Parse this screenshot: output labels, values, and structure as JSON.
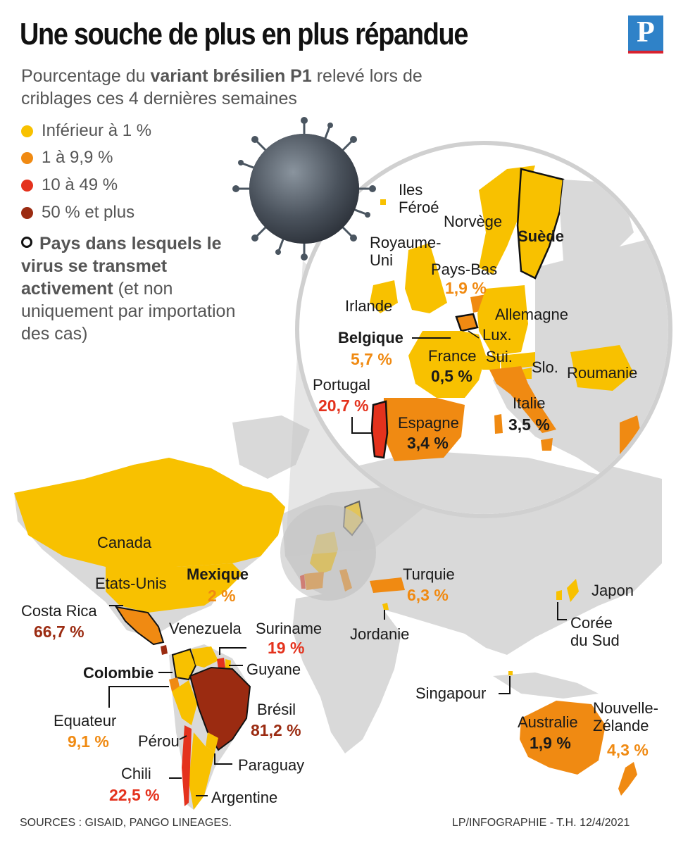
{
  "title": "Une souche de plus en plus répandue",
  "logo": "P",
  "subtitle": {
    "prefix": "Pourcentage du ",
    "bold": "variant brésilien P1",
    "suffix": " relevé lors de criblages ces 4 dernières semaines"
  },
  "legend": {
    "items": [
      {
        "label": "Inférieur à 1 %",
        "color": "#f8c100"
      },
      {
        "label": "1 à 9,9 %",
        "color": "#f08a12"
      },
      {
        "label": "10 à 49 %",
        "color": "#e4321d"
      },
      {
        "label": "50 % et plus",
        "color": "#9b2b11"
      }
    ],
    "active_bold": "Pays dans lesquels le virus se transmet activement",
    "active_rest": " (et non uniquement par importation des cas)"
  },
  "colors": {
    "land": "#d9d9d9",
    "sea": "#ffffff",
    "low": "#f8c100",
    "mid": "#f08a12",
    "high": "#e4321d",
    "very_high": "#9b2b11"
  },
  "europe_zoom": {
    "labels": {
      "iles_feroe": "Iles Féroé",
      "norvege": "Norvège",
      "suede": "Suède",
      "royaume_uni": "Royaume-Uni",
      "pays_bas": "Pays-Bas",
      "pays_bas_pct": "1,9 %",
      "irlande": "Irlande",
      "allemagne": "Allemagne",
      "belgique": "Belgique",
      "belgique_pct": "5,7 %",
      "lux": "Lux.",
      "sui": "Sui.",
      "france": "France",
      "france_pct": "0,5 %",
      "slo": "Slo.",
      "roumanie": "Roumanie",
      "portugal": "Portugal",
      "portugal_pct": "20,7 %",
      "espagne": "Espagne",
      "espagne_pct": "3,4 %",
      "italie": "Italie",
      "italie_pct": "3,5 %"
    }
  },
  "world": {
    "labels": {
      "canada": "Canada",
      "etats_unis": "Etats-Unis",
      "mexique": "Mexique",
      "mexique_pct": "2 %",
      "costa_rica": "Costa Rica",
      "costa_rica_pct": "66,7 %",
      "venezuela": "Venezuela",
      "suriname": "Suriname",
      "suriname_pct": "19 %",
      "guyane": "Guyane",
      "colombie": "Colombie",
      "equateur": "Equateur",
      "equateur_pct": "9,1 %",
      "perou": "Pérou",
      "bresil": "Brésil",
      "bresil_pct": "81,2 %",
      "paraguay": "Paraguay",
      "chili": "Chili",
      "chili_pct": "22,5 %",
      "argentine": "Argentine",
      "turquie": "Turquie",
      "turquie_pct": "6,3 %",
      "jordanie": "Jordanie",
      "japon": "Japon",
      "coree": "Corée du Sud",
      "singapour": "Singapour",
      "australie": "Australie",
      "australie_pct": "1,9 %",
      "nz": "Nouvelle-Zélande",
      "nz_pct": "4,3 %"
    }
  },
  "footer": {
    "sources": "SOURCES : GISAID, PANGO LINEAGES.",
    "credit": "LP/INFOGRAPHIE - T.H.  12/4/2021"
  }
}
